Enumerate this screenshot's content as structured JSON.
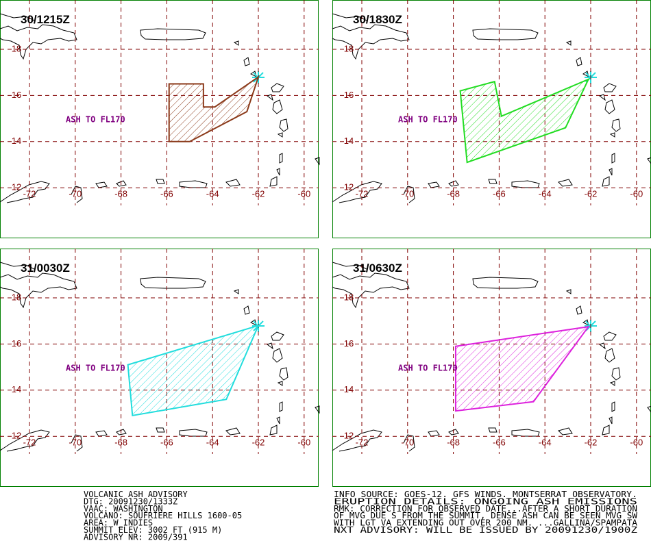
{
  "panels": [
    {
      "title": "30/1215Z",
      "label": "ASH TO FL170",
      "color": "#8b3a1a",
      "ash_polygon": [
        [
          -65.9,
          16.5
        ],
        [
          -64.4,
          16.5
        ],
        [
          -64.4,
          15.5
        ],
        [
          -63.9,
          15.5
        ],
        [
          -62.0,
          16.8
        ],
        [
          -62.5,
          15.3
        ],
        [
          -65.0,
          14.0
        ],
        [
          -65.9,
          14.0
        ]
      ]
    },
    {
      "title": "30/1830Z",
      "label": "ASH TO FL170",
      "color": "#22dd22",
      "ash_polygon": [
        [
          -67.7,
          16.2
        ],
        [
          -66.2,
          16.6
        ],
        [
          -65.9,
          15.1
        ],
        [
          -62.1,
          16.7
        ],
        [
          -63.1,
          14.6
        ],
        [
          -67.4,
          13.1
        ]
      ]
    },
    {
      "title": "31/0030Z",
      "label": "ASH TO FL170",
      "color": "#22dddd",
      "ash_polygon": [
        [
          -67.7,
          15.1
        ],
        [
          -62.0,
          16.8
        ],
        [
          -63.4,
          13.6
        ],
        [
          -67.5,
          12.9
        ]
      ]
    },
    {
      "title": "31/0630Z",
      "label": "ASH TO FL170",
      "color": "#dd22dd",
      "ash_polygon": [
        [
          -67.9,
          15.9
        ],
        [
          -62.1,
          16.75
        ],
        [
          -64.5,
          13.5
        ],
        [
          -67.9,
          13.1
        ]
      ]
    }
  ],
  "lon_ticks": [
    -72,
    -70,
    -68,
    -66,
    -64,
    -62,
    -60
  ],
  "lat_ticks": [
    18,
    16,
    14,
    12
  ],
  "advisory_left": [
    "VOLCANIC ASH ADVISORY",
    "DTG: 20091230/1333Z",
    "VAAC: WASHINGTON",
    "VOLCANO: SOUFRIERE HILLS 1600-05",
    "AREA: W_INDIES",
    "SUMMIT ELEV: 3002 FT (915 M)",
    "ADVISORY NR: 2009/391"
  ],
  "advisory_right": [
    "INFO SOURCE: GOES-12. GFS WINDS. MONTSERRAT OBSERVATORY.",
    "ERUPTION DETAILS: ONGOING ASH EMISSIONS",
    "RMK: CORRECTION FOR OBSERVED DATE...AFTER A SHORT DURATION",
    "OF MVG DUE S FROM THE SUMMIT, DENSE ASH CAN BE SEEN MVG SW",
    "WITH LGT VA EXTENDING OUT OVER 200 NM. ...GALLINA/SPAMPATA",
    "NXT ADVISORY: WILL BE ISSUED BY 20091230/1900Z"
  ]
}
